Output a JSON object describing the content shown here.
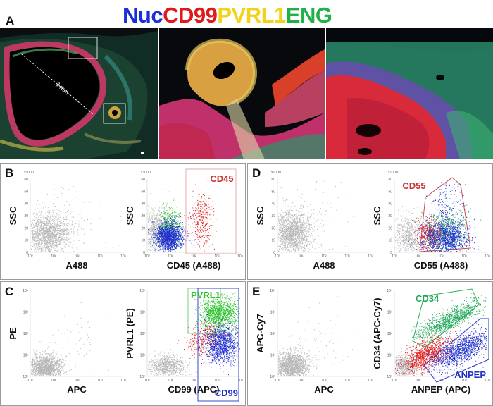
{
  "figure": {
    "panel_a": {
      "letter": "A",
      "stains": [
        {
          "label": "Nuc",
          "color": "#1c2fd6"
        },
        {
          "label": "CD99",
          "color": "#e01a1a"
        },
        {
          "label": "PVRL1",
          "color": "#f2d21a"
        },
        {
          "label": "ENG",
          "color": "#22b04a"
        }
      ],
      "scale_label": "3 mm"
    },
    "panel_b": {
      "letter": "B",
      "left": {
        "y_label": "SSC",
        "x_label": "A488"
      },
      "right": {
        "y_label": "SSC",
        "x_label": "CD45 (A488)",
        "gate_label": "CD45",
        "gate_color": "#c83232"
      },
      "y_multiplier": "x1000",
      "y_ticks": [
        "60",
        "50",
        "40",
        "30",
        "20",
        "10",
        "0"
      ],
      "x_ticks": [
        "10⁰",
        "10¹",
        "10²",
        "10³",
        "10⁴"
      ]
    },
    "panel_c": {
      "letter": "C",
      "left": {
        "y_label": "PE",
        "x_label": "APC"
      },
      "right": {
        "y_label": "PVRL1 (PE)",
        "x_label": "CD99 (APC)",
        "gate_labels": [
          "PVRL1",
          "CD99"
        ],
        "gate_colors": [
          "#2cc22c",
          "#1f2fc0"
        ]
      },
      "y_ticks": [
        "10⁴",
        "10³",
        "10²",
        "10¹",
        "10⁰"
      ],
      "x_ticks": [
        "10⁰",
        "10¹",
        "10²",
        "10³",
        "10⁴"
      ]
    },
    "panel_d": {
      "letter": "D",
      "left": {
        "y_label": "SSC",
        "x_label": "A488"
      },
      "right": {
        "y_label": "SSC",
        "x_label": "CD55 (A488)",
        "gate_label": "CD55",
        "gate_color": "#c83232"
      },
      "y_multiplier": "x1000",
      "y_ticks": [
        "60",
        "50",
        "40",
        "30",
        "20",
        "10",
        "0"
      ],
      "x_ticks": [
        "10⁰",
        "10¹",
        "10²",
        "10³",
        "10⁴"
      ]
    },
    "panel_e": {
      "letter": "E",
      "left": {
        "y_label": "APC-Cy7",
        "x_label": "APC"
      },
      "right": {
        "y_label": "CD34 (APC-Cy7)",
        "x_label": "ANPEP (APC)",
        "gate_labels": [
          "CD34",
          "ANPEP"
        ],
        "gate_colors": [
          "#1fa85a",
          "#1f2fc0"
        ]
      },
      "y_ticks": [
        "10⁴",
        "10³",
        "10²",
        "10¹",
        "10⁰"
      ],
      "x_ticks": [
        "10⁰",
        "10¹",
        "10²",
        "10³",
        "10⁴"
      ]
    },
    "colors": {
      "negative_events": "#b7b7b7",
      "red_pop": "#e01a1a",
      "green_pop": "#2cc22c",
      "blue_pop": "#1f2fd0",
      "teal_pop": "#1fa85a"
    }
  }
}
